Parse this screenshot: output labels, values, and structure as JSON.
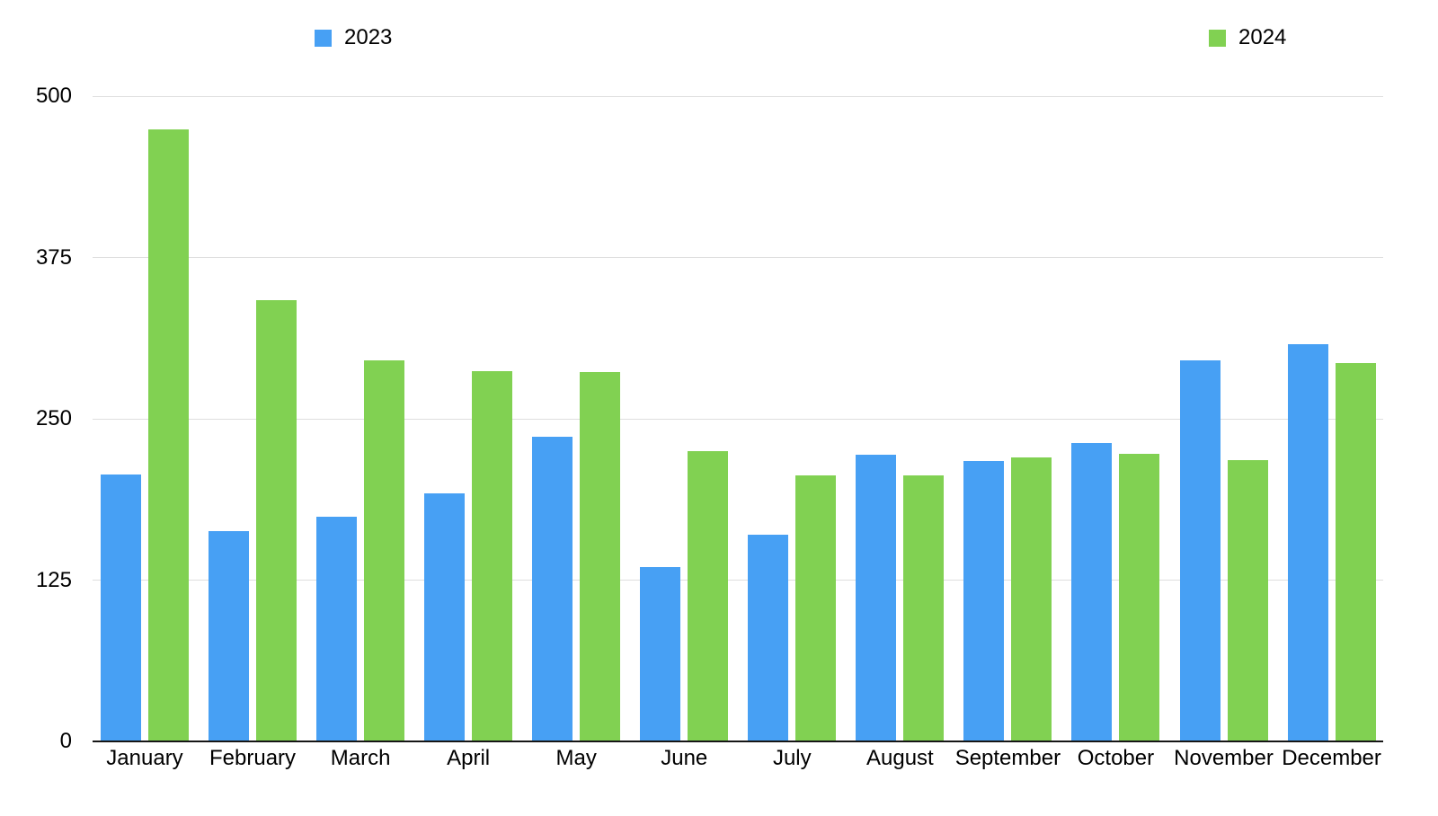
{
  "chart_data": {
    "type": "bar",
    "categories": [
      "January",
      "February",
      "March",
      "April",
      "May",
      "June",
      "July",
      "August",
      "September",
      "October",
      "November",
      "December"
    ],
    "series": [
      {
        "name": "2023",
        "color": "#47a0f4",
        "values": [
          207,
          163,
          174,
          192,
          236,
          135,
          160,
          222,
          217,
          231,
          295,
          308
        ]
      },
      {
        "name": "2024",
        "color": "#81d152",
        "values": [
          474,
          342,
          295,
          287,
          286,
          225,
          206,
          206,
          220,
          223,
          218,
          293
        ]
      }
    ],
    "title": "",
    "xlabel": "",
    "ylabel": "",
    "yticks": [
      0,
      125,
      250,
      375,
      500
    ],
    "ylim": [
      0,
      500
    ],
    "grid": true,
    "legend_position": "top-spread"
  },
  "colors": {
    "background": "#ffffff",
    "gridline": "#dedede",
    "axis_line": "#161616",
    "text": "#000000"
  }
}
